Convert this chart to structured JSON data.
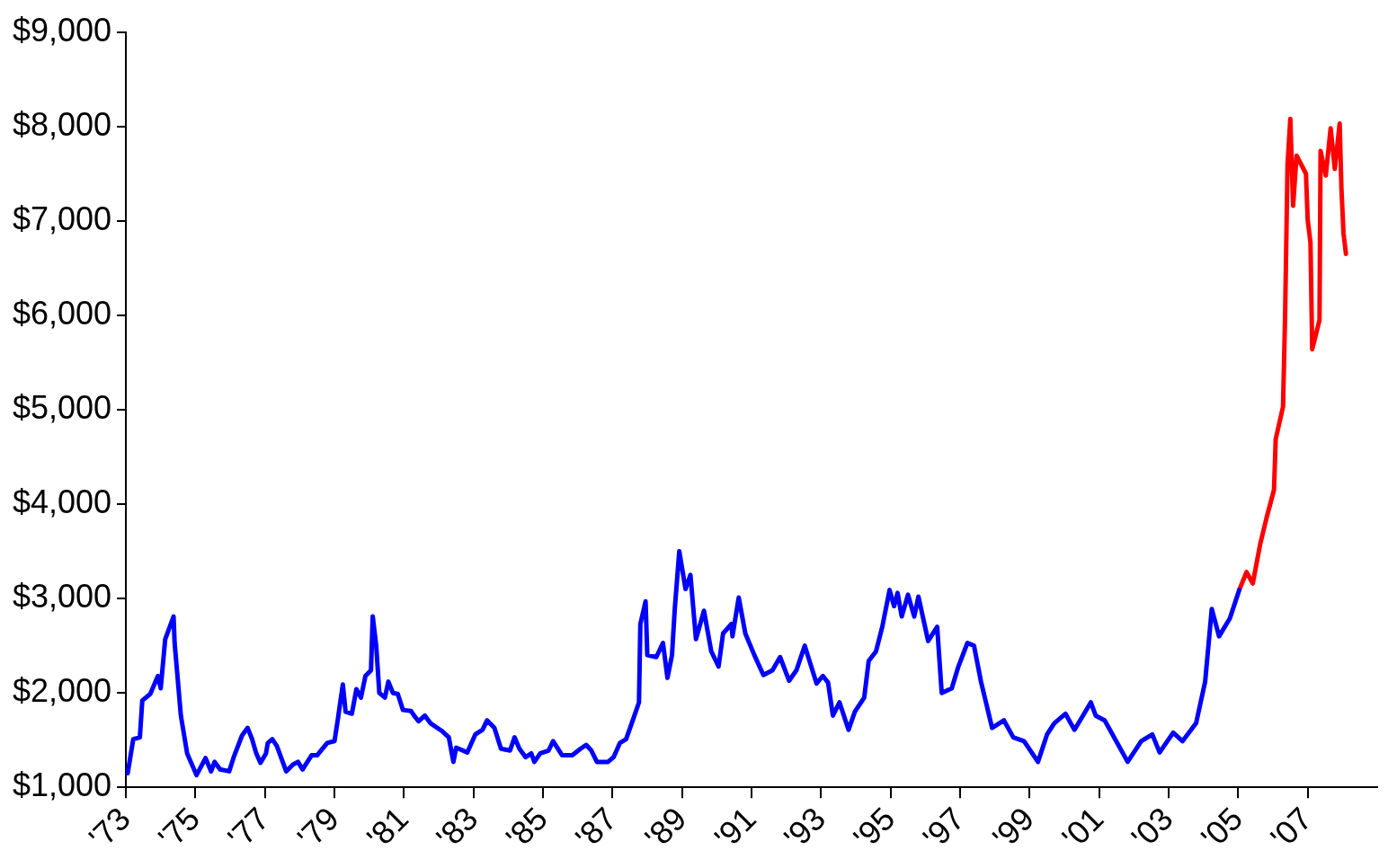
{
  "chart_data": {
    "type": "line",
    "xlim": [
      1973,
      2009
    ],
    "ylim": [
      1000,
      9000
    ],
    "xticks": [
      {
        "value": 1973,
        "label": "'73"
      },
      {
        "value": 1975,
        "label": "'75"
      },
      {
        "value": 1977,
        "label": "'77"
      },
      {
        "value": 1979,
        "label": "'79"
      },
      {
        "value": 1981,
        "label": "'81"
      },
      {
        "value": 1983,
        "label": "'83"
      },
      {
        "value": 1985,
        "label": "'85"
      },
      {
        "value": 1987,
        "label": "'87"
      },
      {
        "value": 1989,
        "label": "'89"
      },
      {
        "value": 1991,
        "label": "'91"
      },
      {
        "value": 1993,
        "label": "'93"
      },
      {
        "value": 1995,
        "label": "'95"
      },
      {
        "value": 1997,
        "label": "'97"
      },
      {
        "value": 1999,
        "label": "'99"
      },
      {
        "value": 2001,
        "label": "'01"
      },
      {
        "value": 2003,
        "label": "'03"
      },
      {
        "value": 2005,
        "label": "'05"
      },
      {
        "value": 2007,
        "label": "'07"
      }
    ],
    "yticks": [
      {
        "value": 1000,
        "label": "$1,000"
      },
      {
        "value": 2000,
        "label": "$2,000"
      },
      {
        "value": 3000,
        "label": "$3,000"
      },
      {
        "value": 4000,
        "label": "$4,000"
      },
      {
        "value": 5000,
        "label": "$5,000"
      },
      {
        "value": 6000,
        "label": "$6,000"
      },
      {
        "value": 7000,
        "label": "$7,000"
      },
      {
        "value": 8000,
        "label": "$8,000"
      },
      {
        "value": 9000,
        "label": "$9,000"
      }
    ],
    "grid": false,
    "legend": false,
    "marker": "none",
    "line_style": "solid",
    "series": [
      {
        "color": "#0000ff",
        "x": [
          1973.05,
          1973.21,
          1973.4,
          1973.47,
          1973.7,
          1973.92,
          1974.0,
          1974.13,
          1974.37,
          1974.4,
          1974.58,
          1974.76,
          1975.03,
          1975.29,
          1975.45,
          1975.55,
          1975.71,
          1975.97,
          1976.1,
          1976.34,
          1976.5,
          1976.63,
          1976.74,
          1976.87,
          1977.03,
          1977.08,
          1977.21,
          1977.34,
          1977.61,
          1977.8,
          1977.95,
          1978.08,
          1978.34,
          1978.5,
          1978.79,
          1979.0,
          1979.1,
          1979.24,
          1979.32,
          1979.5,
          1979.63,
          1979.76,
          1979.89,
          1980.05,
          1980.1,
          1980.2,
          1980.29,
          1980.45,
          1980.55,
          1980.68,
          1980.82,
          1980.97,
          1981.2,
          1981.29,
          1981.42,
          1981.6,
          1981.76,
          1982.08,
          1982.29,
          1982.42,
          1982.5,
          1982.82,
          1983.05,
          1983.26,
          1983.39,
          1983.6,
          1983.79,
          1984.05,
          1984.18,
          1984.32,
          1984.5,
          1984.66,
          1984.75,
          1984.92,
          1985.16,
          1985.29,
          1985.55,
          1985.84,
          1986.08,
          1986.24,
          1986.39,
          1986.55,
          1986.87,
          1987.03,
          1987.21,
          1987.39,
          1987.6,
          1987.76,
          1987.8,
          1987.95,
          1988.0,
          1988.26,
          1988.45,
          1988.58,
          1988.71,
          1988.79,
          1988.92,
          1989.1,
          1989.24,
          1989.4,
          1989.63,
          1989.84,
          1990.05,
          1990.18,
          1990.42,
          1990.45,
          1990.63,
          1990.82,
          1991.08,
          1991.34,
          1991.6,
          1991.82,
          1992.08,
          1992.29,
          1992.53,
          1992.87,
          1993.05,
          1993.2,
          1993.34,
          1993.53,
          1993.79,
          1993.97,
          1994.24,
          1994.37,
          1994.58,
          1994.76,
          1994.97,
          1995.1,
          1995.2,
          1995.32,
          1995.5,
          1995.68,
          1995.8,
          1996.08,
          1996.34,
          1996.47,
          1996.76,
          1996.95,
          1997.21,
          1997.4,
          1997.6,
          1997.92,
          1998.26,
          1998.53,
          1998.84,
          1999.24,
          1999.5,
          1999.71,
          2000.03,
          2000.29,
          2000.76,
          2000.9,
          2001.16,
          2001.82,
          2002.21,
          2002.53,
          2002.74,
          2003.13,
          2003.4,
          2003.79,
          2004.05,
          2004.24,
          2004.45,
          2004.76,
          2005.03
        ],
        "values": [
          1150,
          1510,
          1530,
          1920,
          1990,
          2180,
          2050,
          2570,
          2810,
          2530,
          1760,
          1360,
          1130,
          1310,
          1170,
          1270,
          1190,
          1170,
          1320,
          1550,
          1630,
          1510,
          1370,
          1260,
          1360,
          1470,
          1510,
          1440,
          1170,
          1240,
          1270,
          1190,
          1340,
          1340,
          1470,
          1490,
          1730,
          2090,
          1800,
          1780,
          2040,
          1950,
          2180,
          2240,
          2810,
          2500,
          2000,
          1950,
          2120,
          2000,
          1990,
          1820,
          1810,
          1760,
          1700,
          1760,
          1680,
          1600,
          1530,
          1270,
          1420,
          1370,
          1560,
          1610,
          1710,
          1630,
          1410,
          1390,
          1530,
          1410,
          1320,
          1360,
          1270,
          1360,
          1390,
          1490,
          1340,
          1340,
          1410,
          1450,
          1390,
          1270,
          1270,
          1320,
          1470,
          1510,
          1730,
          1900,
          2730,
          2970,
          2400,
          2380,
          2530,
          2160,
          2400,
          2890,
          3500,
          3100,
          3250,
          2570,
          2870,
          2440,
          2280,
          2630,
          2730,
          2600,
          3010,
          2630,
          2400,
          2190,
          2240,
          2380,
          2130,
          2240,
          2500,
          2100,
          2180,
          2110,
          1760,
          1900,
          1610,
          1800,
          1950,
          2340,
          2440,
          2700,
          3090,
          2920,
          3060,
          2810,
          3040,
          2810,
          3020,
          2550,
          2700,
          2000,
          2050,
          2280,
          2530,
          2500,
          2120,
          1630,
          1710,
          1530,
          1490,
          1270,
          1560,
          1680,
          1780,
          1610,
          1900,
          1760,
          1710,
          1270,
          1490,
          1560,
          1370,
          1580,
          1490,
          1680,
          2120,
          2890,
          2600,
          2790,
          3090
        ]
      },
      {
        "color": "#ff0000",
        "x": [
          2005.03,
          2005.24,
          2005.42,
          2005.63,
          2005.82,
          2006.03,
          2006.08,
          2006.29,
          2006.35,
          2006.42,
          2006.5,
          2006.58,
          2006.68,
          2006.95,
          2007.0,
          2007.08,
          2007.13,
          2007.34,
          2007.37,
          2007.52,
          2007.66,
          2007.78,
          2007.92,
          2007.97,
          2008.03,
          2008.1
        ],
        "values": [
          3090,
          3280,
          3160,
          3570,
          3860,
          4150,
          4690,
          5030,
          6000,
          7600,
          8080,
          7160,
          7690,
          7500,
          7010,
          6770,
          5640,
          5950,
          7740,
          7480,
          7980,
          7550,
          8030,
          7350,
          6870,
          6650
        ]
      }
    ]
  }
}
